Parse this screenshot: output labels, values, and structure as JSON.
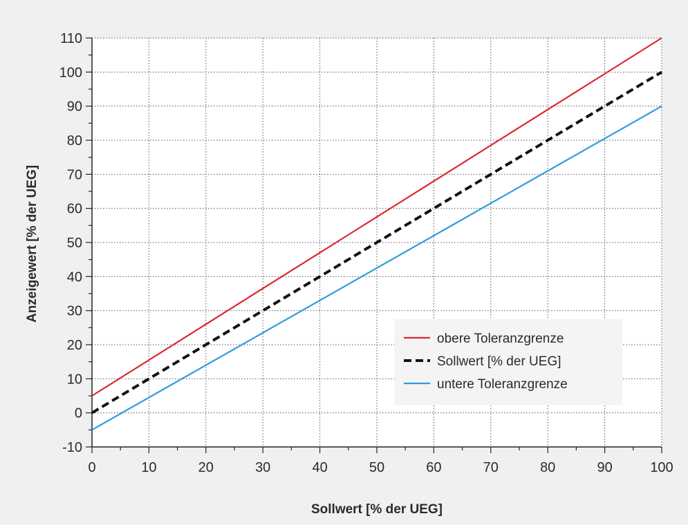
{
  "chart_data": {
    "type": "line",
    "xlabel": "Sollwert [% der UEG]",
    "ylabel": "Anzeigewert [% der UEG]",
    "xlim": [
      0,
      100
    ],
    "ylim": [
      -10,
      110
    ],
    "x_ticks": [
      0,
      10,
      20,
      30,
      40,
      50,
      60,
      70,
      80,
      90,
      100
    ],
    "y_ticks": [
      -10,
      0,
      10,
      20,
      30,
      40,
      50,
      60,
      70,
      80,
      90,
      100,
      110
    ],
    "x_minor_step": 5,
    "y_minor_step": 5,
    "grid": true,
    "legend_position": "bottom-right",
    "series": [
      {
        "name": "obere Toleranzgrenze",
        "color": "#d9282f",
        "style": "solid",
        "x": [
          0,
          100
        ],
        "y": [
          5,
          110
        ]
      },
      {
        "name": "Sollwert [% der UEG]",
        "color": "#111111",
        "style": "dashed",
        "x": [
          0,
          100
        ],
        "y": [
          0,
          100
        ]
      },
      {
        "name": "untere Toleranzgrenze",
        "color": "#2b9be0",
        "style": "solid",
        "x": [
          0,
          100
        ],
        "y": [
          -5,
          90
        ]
      }
    ]
  }
}
